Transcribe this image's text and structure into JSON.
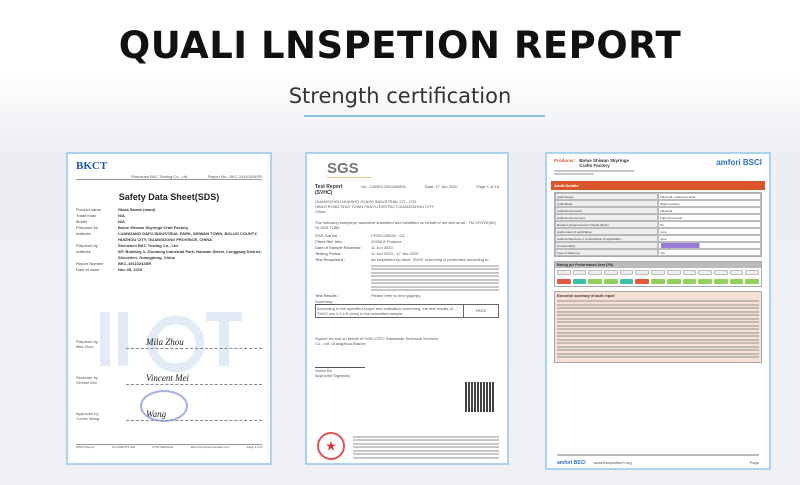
{
  "header": {
    "title": "QUALI LNSPETION REPORT",
    "subtitle": "Strength certification"
  },
  "colors": {
    "accent_underline": "#8ec3e0",
    "doc_border": "#a9d3ee",
    "audit_bar": "#d9552a"
  },
  "documents": [
    {
      "logo": "BKCT",
      "company": "Shenzhen BKC Testing Co., Ltd.",
      "report_no": "Report No.: BKC-19110244SR",
      "title": "Safety Data Sheet(SDS)",
      "fields": [
        {
          "k": "Product name",
          "v": "Glass Beads (sand)"
        },
        {
          "k": "Trade mark",
          "v": "N/A"
        },
        {
          "k": "Model",
          "v": "N/A"
        },
        {
          "k": "Prepared for",
          "v": "Bolue Shiwan Skyringe Craft Factory"
        },
        {
          "k": "Address",
          "v": "LUANGANG DAFU INDUSTRIAL PARK, SHIWAN TOWN, BOLUO COUNTY, HUIZHOU CITY, GUANGDONG PROVINCE, CHINA"
        },
        {
          "k": "Prepared by",
          "v": "Shenzhen BKC Testing Co., Ltd."
        },
        {
          "k": "Address",
          "v": "6/F, Building 3, Zhouleng Industrial Park, Nanwan Street, Longgang District, Shenzhen, Guangdong, China"
        },
        {
          "k": "Report Number",
          "v": "BKC-19110244SR"
        },
        {
          "k": "Date of issue",
          "v": "Nov 28, 2019"
        }
      ],
      "signatures": [
        {
          "role": "Prepared by",
          "name": "Mila Zhou",
          "sig": "Mila Zhou"
        },
        {
          "role": "Reviewer by",
          "name": "Vincent Mei",
          "sig": "Vincent Mei"
        },
        {
          "role": "Approved by",
          "name": "Corbin Wang",
          "sig": "Wang"
        }
      ],
      "footer": [
        "MSDS Report",
        "Tel:4008-875-362",
        "0755-32920341",
        "Web:http://www.bkcdtab.com",
        "Page 1 of 8"
      ]
    },
    {
      "logo": "SGS",
      "title": "Test Report",
      "subtitle": "(SVHC)",
      "no": "No.: CANEC2000250801",
      "date": "Date: 17 Jun 2020",
      "page": "Page 1 of 16",
      "client": [
        "GUANGZHOU HUASHO GLASS INDUSTRIAL CO., LTD.",
        "HANJI ROAD,SHIJI TOWN,PANYU DISTRICT,GUANGZHOU CITY",
        "China"
      ],
      "intro": "The following sample(s) was/were submitted and identified on behalf of the clients as : 7M STOVE(5K) GLASS TUBE",
      "fields": [
        {
          "k": "SGS Job No. :",
          "v": "CP20-028926 - GZ"
        },
        {
          "k": "Client Ref. Info. :",
          "v": "20200.8 Produce"
        },
        {
          "k": "Date of Sample Received :",
          "v": "11 Jun 2020"
        },
        {
          "k": "Testing Period :",
          "v": "11 Jun 2020 - 17 Jun 2020"
        },
        {
          "k": "Test Requested :",
          "v": "As requested by client, SVHC screening is performed according to:"
        }
      ],
      "test_results": "Test Results :",
      "test_results_v": "Please refer to next page(s).",
      "summary_label": "Summary:",
      "summary": "According to the specified scope and evaluation screening, the test results of SVHC are ≤ 0.1% (w/w) in the submitted sample.",
      "result": "PASS",
      "signed": "Signed for and on behalf of SGS-CSTC Standards Technical Services Co., Ltd. Guangzhou Branch",
      "signatory": "Vivian Bo",
      "signatory_role": "Approved Signatory"
    },
    {
      "producer_label": "Producer:",
      "producer": "Bolue Shiwan Skyringe Crafts Factory",
      "logo": "amfori BSCI",
      "section": "Audit Details",
      "rows": [
        "Audit Scope:",
        "Audit Mode:",
        "Audit Environment:",
        "Audit Announcement:",
        "Random (Unannounced Check) (RUC):",
        "Audit extent (if applicable):",
        "Audit Architecture or configuration (if applicable):",
        "Overall rating:",
        "Type of follow-up:"
      ],
      "values": [
        "Full Audit / Follow-up Audit",
        "Share Auditors",
        "Industrial",
        "Fully Announced",
        "No",
        "none",
        "none",
        "",
        "Yes"
      ],
      "ratings_title": "Rating per Performance Area (PA)",
      "ratings": [
        "#e25a3e",
        "#3bbfa6",
        "#8fd15a",
        "#8fd15a",
        "#3bbfa6",
        "#e25a3e",
        "#8fd15a",
        "#8fd15a",
        "#8fd15a",
        "#8fd15a",
        "#8fd15a",
        "#8fd15a",
        "#8fd15a"
      ],
      "summary_title": "Executive summary of audit report",
      "footer_url": "www.bsciplatform.org",
      "page": "Page"
    }
  ]
}
